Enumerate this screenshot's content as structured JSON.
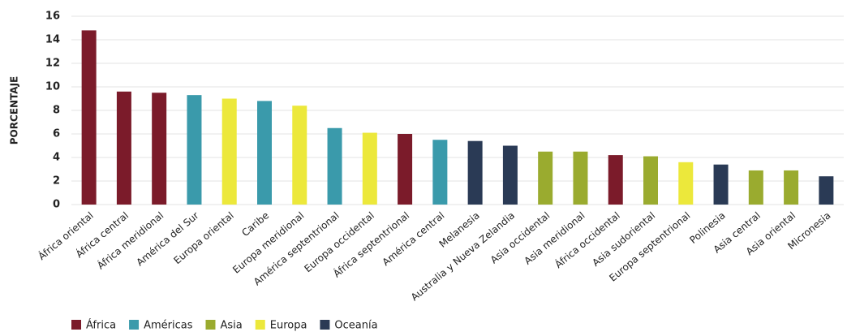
{
  "chart_data": {
    "type": "bar",
    "y_label": "PORCENTAJE",
    "categories": [
      "África oriental",
      "África central",
      "África meridional",
      "América del Sur",
      "Europa oriental",
      "Caribe",
      "Europa meridional",
      "América septentrional",
      "Europa occidental",
      "África septentrional",
      "América central",
      "Melanesia",
      "Australia y Nueva Zelandia",
      "Asia occidental",
      "Asia meridional",
      "África occidental",
      "Asia sudoriental",
      "Europa septentrional",
      "Polinesia",
      "Asia central",
      "Asia oriental",
      "Micronesia"
    ],
    "series": [
      {
        "name": "África",
        "color": "#7b1b2a",
        "values": [
          14.8,
          9.6,
          9.5,
          null,
          null,
          null,
          null,
          null,
          null,
          6.0,
          null,
          null,
          null,
          null,
          null,
          4.2,
          null,
          null,
          null,
          null,
          null,
          null
        ]
      },
      {
        "name": "Américas",
        "color": "#3a9aab",
        "values": [
          null,
          null,
          null,
          9.3,
          null,
          8.8,
          null,
          6.5,
          null,
          null,
          5.5,
          null,
          null,
          null,
          null,
          null,
          null,
          null,
          null,
          null,
          null,
          null
        ]
      },
      {
        "name": "Asia",
        "color": "#9aab2f",
        "values": [
          null,
          null,
          null,
          null,
          null,
          null,
          null,
          null,
          null,
          null,
          null,
          null,
          null,
          4.5,
          4.5,
          null,
          4.1,
          null,
          null,
          2.9,
          2.9,
          null
        ]
      },
      {
        "name": "Europa",
        "color": "#ece83b",
        "values": [
          null,
          null,
          null,
          null,
          9.0,
          null,
          8.4,
          null,
          6.1,
          null,
          null,
          null,
          null,
          null,
          null,
          null,
          null,
          3.6,
          null,
          null,
          null,
          null
        ]
      },
      {
        "name": "Oceanía",
        "color": "#2a3a55",
        "values": [
          null,
          null,
          null,
          null,
          null,
          null,
          null,
          null,
          null,
          null,
          null,
          5.4,
          5.0,
          null,
          null,
          null,
          null,
          null,
          3.4,
          null,
          null,
          2.4
        ]
      }
    ],
    "ylim": [
      0,
      16
    ],
    "yticks": [
      0,
      2,
      4,
      6,
      8,
      10,
      12,
      14,
      16
    ],
    "grid": true
  }
}
